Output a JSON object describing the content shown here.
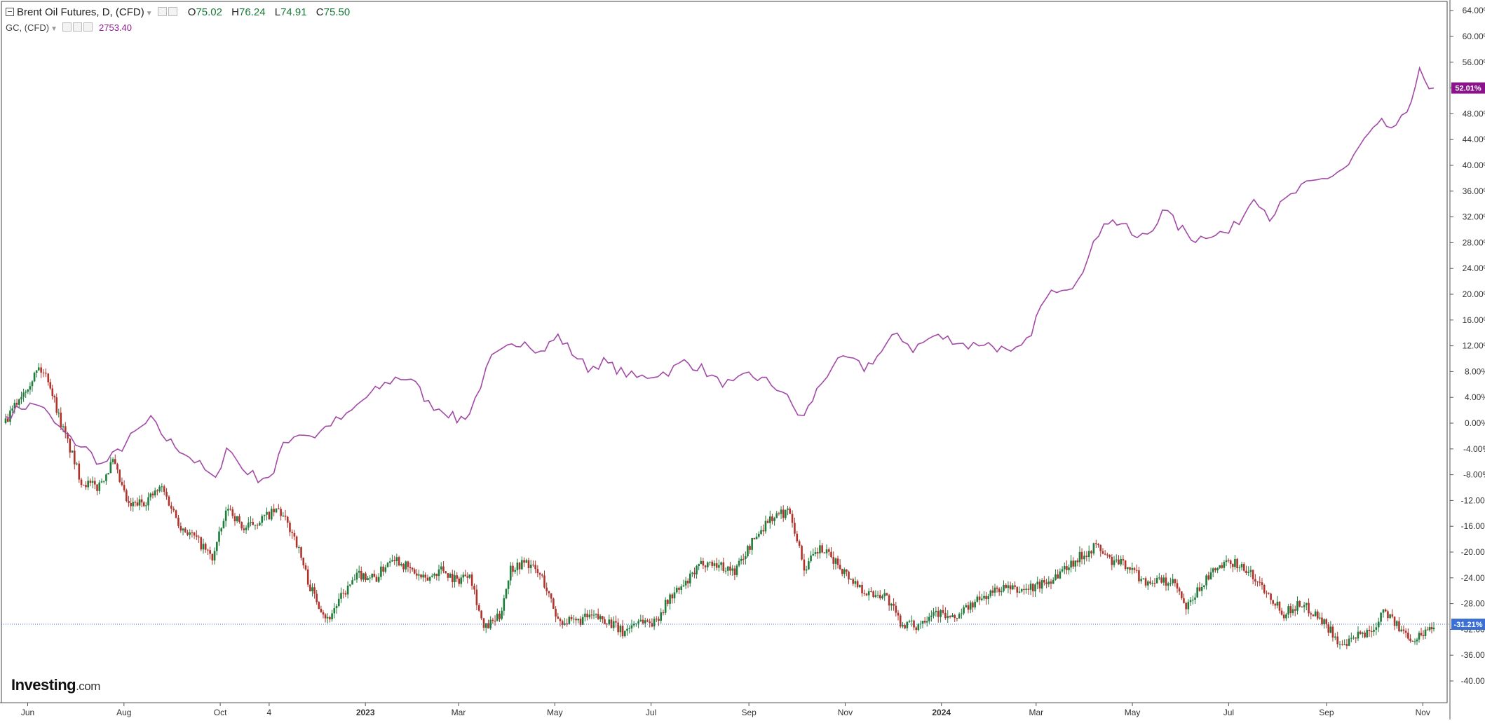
{
  "legend": {
    "series1_title": "Brent Oil Futures, D, (CFD)",
    "open_key": "O",
    "open": "75.02",
    "high_key": "H",
    "high": "76.24",
    "low_key": "L",
    "low": "74.91",
    "close_key": "C",
    "close": "75.50",
    "series2_title": "GC, (CFD)",
    "series2_value": "2753.40"
  },
  "logo": {
    "main": "Investing",
    "suffix": ".com"
  },
  "colors": {
    "gold_line": "#a24aa6",
    "up_candle": "#1e7d3a",
    "down_candle": "#b0322a",
    "brent_marker": "#3b6fd6",
    "gold_marker": "#8a128a",
    "axis": "#333333"
  },
  "chart_data": {
    "type": "line",
    "y_axis": {
      "unit": "percent change",
      "range": [
        -42,
        66
      ],
      "ticks": [
        "64.00%",
        "60.00%",
        "56.00%",
        "52.00%",
        "48.00%",
        "44.00%",
        "40.00%",
        "36.00%",
        "32.00%",
        "28.00%",
        "24.00%",
        "20.00%",
        "16.00%",
        "12.00%",
        "8.00%",
        "4.00%",
        "0.00%",
        "-4.00%",
        "-8.00%",
        "-12.00%",
        "-16.00%",
        "-20.00%",
        "-24.00%",
        "-28.00%",
        "-32.00%",
        "-36.00%",
        "-40.00%"
      ]
    },
    "x_axis": {
      "range": [
        "2022-05-18",
        "2024-11-08"
      ],
      "ticks": [
        {
          "date": "2022-06-01",
          "label": "Jun"
        },
        {
          "date": "2022-08-01",
          "label": "Aug"
        },
        {
          "date": "2022-10-01",
          "label": "Oct"
        },
        {
          "date": "2022-11-01",
          "label": "4"
        },
        {
          "date": "2023-01-01",
          "label": "2023"
        },
        {
          "date": "2023-03-01",
          "label": "Mar"
        },
        {
          "date": "2023-05-01",
          "label": "May"
        },
        {
          "date": "2023-07-01",
          "label": "Jul"
        },
        {
          "date": "2023-09-01",
          "label": "Sep"
        },
        {
          "date": "2023-11-01",
          "label": "Nov"
        },
        {
          "date": "2024-01-01",
          "label": "2024"
        },
        {
          "date": "2024-03-01",
          "label": "Mar"
        },
        {
          "date": "2024-05-01",
          "label": "May"
        },
        {
          "date": "2024-07-01",
          "label": "Jul"
        },
        {
          "date": "2024-09-01",
          "label": "Sep"
        },
        {
          "date": "2024-11-01",
          "label": "Nov"
        }
      ]
    },
    "grid": false,
    "legend_position": "top-left",
    "series": [
      {
        "name": "GC, (CFD)",
        "style": "line",
        "last_label": "52.01%",
        "points": [
          [
            "2022-05-18",
            1.0
          ],
          [
            "2022-05-28",
            2.5
          ],
          [
            "2022-06-08",
            3.0
          ],
          [
            "2022-06-18",
            0.0
          ],
          [
            "2022-06-28",
            -2.5
          ],
          [
            "2022-07-08",
            -4.0
          ],
          [
            "2022-07-18",
            -6.5
          ],
          [
            "2022-07-28",
            -4.5
          ],
          [
            "2022-08-08",
            -1.5
          ],
          [
            "2022-08-18",
            0.5
          ],
          [
            "2022-08-28",
            -2.5
          ],
          [
            "2022-09-08",
            -4.5
          ],
          [
            "2022-09-18",
            -6.5
          ],
          [
            "2022-09-28",
            -9.0
          ],
          [
            "2022-10-05",
            -3.5
          ],
          [
            "2022-10-15",
            -7.0
          ],
          [
            "2022-10-25",
            -8.5
          ],
          [
            "2022-11-04",
            -8.0
          ],
          [
            "2022-11-10",
            -3.0
          ],
          [
            "2022-11-20",
            -1.5
          ],
          [
            "2022-11-30",
            -2.0
          ],
          [
            "2022-12-10",
            0.0
          ],
          [
            "2022-12-20",
            1.0
          ],
          [
            "2022-12-30",
            3.5
          ],
          [
            "2023-01-10",
            5.5
          ],
          [
            "2023-01-20",
            7.0
          ],
          [
            "2023-01-30",
            7.0
          ],
          [
            "2023-02-10",
            3.0
          ],
          [
            "2023-02-20",
            2.0
          ],
          [
            "2023-02-28",
            0.5
          ],
          [
            "2023-03-08",
            1.5
          ],
          [
            "2023-03-15",
            6.0
          ],
          [
            "2023-03-22",
            10.0
          ],
          [
            "2023-04-01",
            11.5
          ],
          [
            "2023-04-12",
            13.0
          ],
          [
            "2023-04-22",
            11.0
          ],
          [
            "2023-05-03",
            13.5
          ],
          [
            "2023-05-12",
            11.0
          ],
          [
            "2023-05-22",
            8.5
          ],
          [
            "2023-06-01",
            9.5
          ],
          [
            "2023-06-12",
            8.0
          ],
          [
            "2023-06-22",
            7.0
          ],
          [
            "2023-07-02",
            7.5
          ],
          [
            "2023-07-12",
            8.0
          ],
          [
            "2023-07-22",
            9.5
          ],
          [
            "2023-08-02",
            8.5
          ],
          [
            "2023-08-12",
            6.5
          ],
          [
            "2023-08-22",
            6.0
          ],
          [
            "2023-09-01",
            7.5
          ],
          [
            "2023-09-12",
            6.5
          ],
          [
            "2023-09-22",
            5.0
          ],
          [
            "2023-10-02",
            1.5
          ],
          [
            "2023-10-06",
            1.0
          ],
          [
            "2023-10-14",
            5.0
          ],
          [
            "2023-10-24",
            9.0
          ],
          [
            "2023-11-03",
            10.0
          ],
          [
            "2023-11-13",
            8.5
          ],
          [
            "2023-11-24",
            11.0
          ],
          [
            "2023-12-04",
            14.0
          ],
          [
            "2023-12-14",
            11.5
          ],
          [
            "2023-12-27",
            13.5
          ],
          [
            "2024-01-08",
            13.0
          ],
          [
            "2024-01-18",
            12.0
          ],
          [
            "2024-01-28",
            12.5
          ],
          [
            "2024-02-08",
            11.5
          ],
          [
            "2024-02-14",
            10.5
          ],
          [
            "2024-02-24",
            12.5
          ],
          [
            "2024-03-04",
            18.0
          ],
          [
            "2024-03-14",
            21.0
          ],
          [
            "2024-03-24",
            21.5
          ],
          [
            "2024-04-03",
            25.5
          ],
          [
            "2024-04-13,",
            31.5
          ],
          [
            "2024-04-24",
            31.0
          ],
          [
            "2024-05-04",
            28.5
          ],
          [
            "2024-05-14",
            30.0
          ],
          [
            "2024-05-20",
            33.5
          ],
          [
            "2024-05-30",
            30.5
          ],
          [
            "2024-06-10",
            28.5
          ],
          [
            "2024-06-20",
            29.5
          ],
          [
            "2024-07-01",
            29.5
          ],
          [
            "2024-07-11",
            32.5
          ],
          [
            "2024-07-17",
            35.5
          ],
          [
            "2024-07-27",
            32.0
          ],
          [
            "2024-08-06",
            34.5
          ],
          [
            "2024-08-16",
            36.5
          ],
          [
            "2024-08-26",
            37.5
          ],
          [
            "2024-09-05",
            38.5
          ],
          [
            "2024-09-15",
            40.0
          ],
          [
            "2024-09-25",
            44.0
          ],
          [
            "2024-10-06",
            46.5
          ],
          [
            "2024-10-15",
            45.5
          ],
          [
            "2024-10-22",
            48.5
          ],
          [
            "2024-10-30",
            54.5
          ],
          [
            "2024-11-05",
            51.5
          ],
          [
            "2024-11-08",
            52.0
          ]
        ]
      },
      {
        "name": "Brent Oil Futures, D, (CFD)",
        "style": "candlestick",
        "last_label": "-31.21%",
        "points": [
          [
            "2022-05-18",
            0.0
          ],
          [
            "2022-05-28",
            4.5
          ],
          [
            "2022-06-08",
            8.5
          ],
          [
            "2022-06-14",
            7.0
          ],
          [
            "2022-06-22",
            0.0
          ],
          [
            "2022-07-05",
            -9.0
          ],
          [
            "2022-07-15",
            -10.0
          ],
          [
            "2022-07-25",
            -6.0
          ],
          [
            "2022-08-04",
            -13.0
          ],
          [
            "2022-08-15",
            -12.0
          ],
          [
            "2022-08-25",
            -10.0
          ],
          [
            "2022-09-06",
            -16.0
          ],
          [
            "2022-09-16",
            -18.0
          ],
          [
            "2022-09-26",
            -21.0
          ],
          [
            "2022-10-06",
            -13.0
          ],
          [
            "2022-10-16",
            -16.5
          ],
          [
            "2022-10-26",
            -15.0
          ],
          [
            "2022-11-07",
            -13.5
          ],
          [
            "2022-11-17",
            -17.5
          ],
          [
            "2022-11-27",
            -25.5
          ],
          [
            "2022-12-08",
            -30.5
          ],
          [
            "2022-12-18",
            -26.5
          ],
          [
            "2022-12-28",
            -23.5
          ],
          [
            "2023-01-08",
            -24.0
          ],
          [
            "2023-01-18",
            -20.5
          ],
          [
            "2023-01-28",
            -22.5
          ],
          [
            "2023-02-08",
            -24.5
          ],
          [
            "2023-02-18",
            -22.5
          ],
          [
            "2023-02-28",
            -24.5
          ],
          [
            "2023-03-08",
            -23.0
          ],
          [
            "2023-03-17",
            -32.0
          ],
          [
            "2023-03-27",
            -30.0
          ],
          [
            "2023-04-03",
            -22.5
          ],
          [
            "2023-04-13",
            -21.5
          ],
          [
            "2023-04-23",
            -24.0
          ],
          [
            "2023-05-03",
            -30.5
          ],
          [
            "2023-05-13",
            -31.0
          ],
          [
            "2023-05-23",
            -30.0
          ],
          [
            "2023-06-03",
            -30.5
          ],
          [
            "2023-06-13",
            -32.5
          ],
          [
            "2023-06-23",
            -30.5
          ],
          [
            "2023-07-03",
            -31.0
          ],
          [
            "2023-07-13",
            -27.0
          ],
          [
            "2023-07-23",
            -25.0
          ],
          [
            "2023-08-03",
            -21.5
          ],
          [
            "2023-08-13",
            -22.0
          ],
          [
            "2023-08-23",
            -23.0
          ],
          [
            "2023-09-03",
            -18.5
          ],
          [
            "2023-09-13",
            -15.0
          ],
          [
            "2023-09-27",
            -13.5
          ],
          [
            "2023-10-06",
            -22.5
          ],
          [
            "2023-10-16",
            -19.5
          ],
          [
            "2023-10-26",
            -21.5
          ],
          [
            "2023-11-06",
            -24.5
          ],
          [
            "2023-11-16",
            -26.5
          ],
          [
            "2023-11-26",
            -26.5
          ],
          [
            "2023-12-06",
            -31.0
          ],
          [
            "2023-12-16",
            -31.5
          ],
          [
            "2023-12-27",
            -29.0
          ],
          [
            "2024-01-08",
            -30.5
          ],
          [
            "2024-01-18",
            -28.5
          ],
          [
            "2024-01-28",
            -27.0
          ],
          [
            "2024-02-08",
            -25.5
          ],
          [
            "2024-02-18",
            -26.0
          ],
          [
            "2024-02-28",
            -25.5
          ],
          [
            "2024-03-09",
            -24.5
          ],
          [
            "2024-03-19",
            -22.5
          ],
          [
            "2024-03-30",
            -20.5
          ],
          [
            "2024-04-08",
            -19.0
          ],
          [
            "2024-04-18",
            -21.5
          ],
          [
            "2024-04-28",
            -22.0
          ],
          [
            "2024-05-08",
            -24.5
          ],
          [
            "2024-05-18",
            -24.5
          ],
          [
            "2024-05-28",
            -25.0
          ],
          [
            "2024-06-04",
            -29.0
          ],
          [
            "2024-06-14",
            -25.0
          ],
          [
            "2024-06-24",
            -22.5
          ],
          [
            "2024-07-05",
            -21.5
          ],
          [
            "2024-07-15",
            -23.5
          ],
          [
            "2024-07-25",
            -26.0
          ],
          [
            "2024-08-05",
            -29.5
          ],
          [
            "2024-08-15",
            -28.0
          ],
          [
            "2024-08-25",
            -29.5
          ],
          [
            "2024-09-05",
            -32.5
          ],
          [
            "2024-09-11",
            -35.0
          ],
          [
            "2024-09-21",
            -33.0
          ],
          [
            "2024-10-01",
            -32.0
          ],
          [
            "2024-10-07",
            -28.5
          ],
          [
            "2024-10-17",
            -32.0
          ],
          [
            "2024-10-27",
            -33.5
          ],
          [
            "2024-11-04",
            -32.0
          ],
          [
            "2024-11-08",
            -31.2
          ]
        ]
      }
    ]
  }
}
